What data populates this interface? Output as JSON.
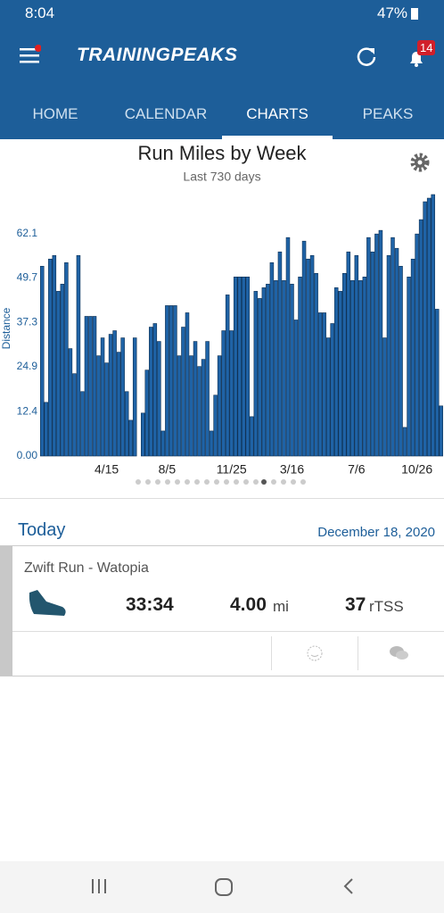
{
  "status_bar": {
    "time": "8:04",
    "battery": "47%"
  },
  "header": {
    "logo": "TRAININGPEAKS",
    "notifications": "14"
  },
  "tabs": [
    "HOME",
    "CALENDAR",
    "CHARTS",
    "PEAKS"
  ],
  "chart_data": {
    "type": "bar",
    "title": "Run Miles by Week",
    "subtitle": "Last 730 days",
    "y_label": "Distance",
    "categories": [
      null,
      null,
      null,
      null,
      null,
      null,
      null,
      null,
      null,
      null,
      null,
      null,
      null,
      null,
      null,
      null,
      "4/15",
      null,
      null,
      null,
      null,
      null,
      null,
      null,
      null,
      null,
      null,
      null,
      null,
      null,
      null,
      "8/5",
      null,
      null,
      null,
      null,
      null,
      null,
      null,
      null,
      null,
      null,
      null,
      null,
      null,
      null,
      null,
      "11/25",
      null,
      null,
      null,
      null,
      null,
      null,
      null,
      null,
      null,
      null,
      null,
      null,
      null,
      null,
      "3/16",
      null,
      null,
      null,
      null,
      null,
      null,
      null,
      null,
      null,
      null,
      null,
      null,
      null,
      null,
      null,
      "7/6",
      null,
      null,
      null,
      null,
      null,
      null,
      null,
      null,
      null,
      null,
      null,
      null,
      null,
      null,
      "10/26",
      null,
      null,
      null,
      null,
      null,
      null
    ],
    "values": [
      53,
      15,
      55,
      56,
      46,
      48,
      54,
      30,
      23,
      56,
      18,
      39,
      39,
      39,
      28,
      33,
      26,
      34,
      35,
      29,
      33,
      18,
      10,
      33,
      0,
      12,
      24,
      36,
      37,
      32,
      7,
      42,
      42,
      42,
      28,
      36,
      40,
      28,
      32,
      25,
      27,
      32,
      7,
      17,
      28,
      35,
      45,
      35,
      50,
      50,
      50,
      50,
      11,
      46,
      44,
      47,
      48,
      54,
      49,
      57,
      49,
      61,
      48,
      38,
      50,
      60,
      55,
      56,
      51,
      40,
      40,
      33,
      37,
      47,
      46,
      51,
      57,
      49,
      56,
      49,
      50,
      61,
      57,
      62,
      63,
      33,
      56,
      61,
      58,
      53,
      8,
      50,
      55,
      62,
      66,
      71,
      72,
      73,
      41,
      14
    ],
    "color": "#1f63a6",
    "ylim": [
      0,
      74
    ],
    "yticks": [
      {
        "value": 0,
        "label": "0.00"
      },
      12.4,
      24.9,
      37.3,
      49.7,
      62.1
    ],
    "grid": false
  },
  "today": {
    "label": "Today",
    "date": "December 18, 2020"
  },
  "workout": {
    "name": "Zwift Run - Watopia",
    "duration": "33:34",
    "distance": "4.00",
    "distance_unit": "mi",
    "tss": "37",
    "tss_unit": "rTSS"
  }
}
